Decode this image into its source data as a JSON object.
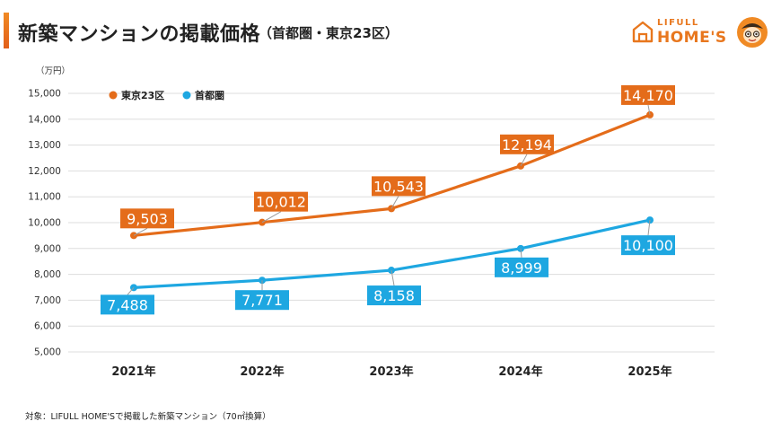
{
  "header": {
    "title": "新築マンションの掲載価格",
    "subtitle": "（首都圏・東京23区）"
  },
  "logo": {
    "text_top": "LIFULL",
    "text_main": "HOME'S",
    "brand_color": "#e8771e"
  },
  "footnote": "対象：LIFULL HOME'Sで掲載した新築マンション（70㎡換算）",
  "colors": {
    "tokyo": "#e46c1a",
    "metro": "#1ea7e1",
    "grid": "#dddddd"
  },
  "chart_data": {
    "type": "line",
    "unit_label": "（万円）",
    "categories": [
      "2021年",
      "2022年",
      "2023年",
      "2024年",
      "2025年"
    ],
    "ylim": [
      5000,
      15000
    ],
    "yticks": [
      5000,
      6000,
      7000,
      8000,
      9000,
      10000,
      11000,
      12000,
      13000,
      14000,
      15000
    ],
    "ytick_labels": [
      "5,000",
      "6,000",
      "7,000",
      "8,000",
      "9,000",
      "10,000",
      "11,000",
      "12,000",
      "13,000",
      "14,000",
      "15,000"
    ],
    "grid": true,
    "legend_position": "top-left",
    "series": [
      {
        "name": "東京23区",
        "values": [
          9503,
          10012,
          10543,
          12194,
          14170
        ],
        "labels": [
          "9,503",
          "10,012",
          "10,543",
          "12,194",
          "14,170"
        ]
      },
      {
        "name": "首都圏",
        "values": [
          7488,
          7771,
          8158,
          8999,
          10100
        ],
        "labels": [
          "7,488",
          "7,771",
          "8,158",
          "8,999",
          "10,100"
        ]
      }
    ]
  }
}
